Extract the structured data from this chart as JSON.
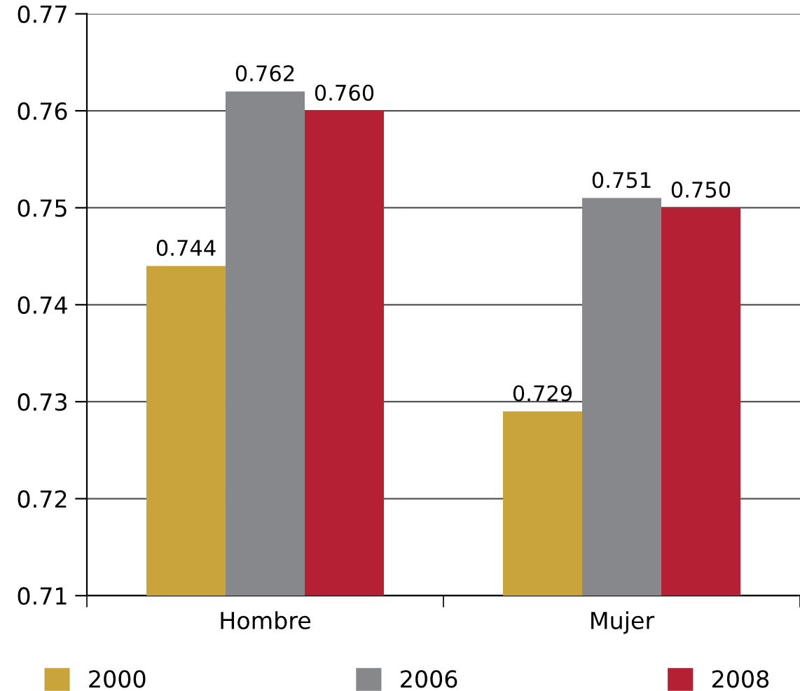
{
  "chart_data": {
    "type": "bar",
    "categories": [
      "Hombre",
      "Mujer"
    ],
    "series": [
      {
        "name": "2000",
        "color": "#c9a43a",
        "values": [
          0.744,
          0.729
        ],
        "value_labels": [
          "0.744",
          "0.729"
        ]
      },
      {
        "name": "2006",
        "color": "#87888c",
        "values": [
          0.762,
          0.751
        ],
        "value_labels": [
          "0.762",
          "0.751"
        ]
      },
      {
        "name": "2008",
        "color": "#b52035",
        "values": [
          0.76,
          0.75
        ],
        "value_labels": [
          "0.760",
          "0.750"
        ]
      }
    ],
    "ylim": [
      0.71,
      0.77
    ],
    "yticks": [
      0.71,
      0.72,
      0.73,
      0.74,
      0.75,
      0.76,
      0.77
    ],
    "grid": "y",
    "legend": "bottom"
  }
}
